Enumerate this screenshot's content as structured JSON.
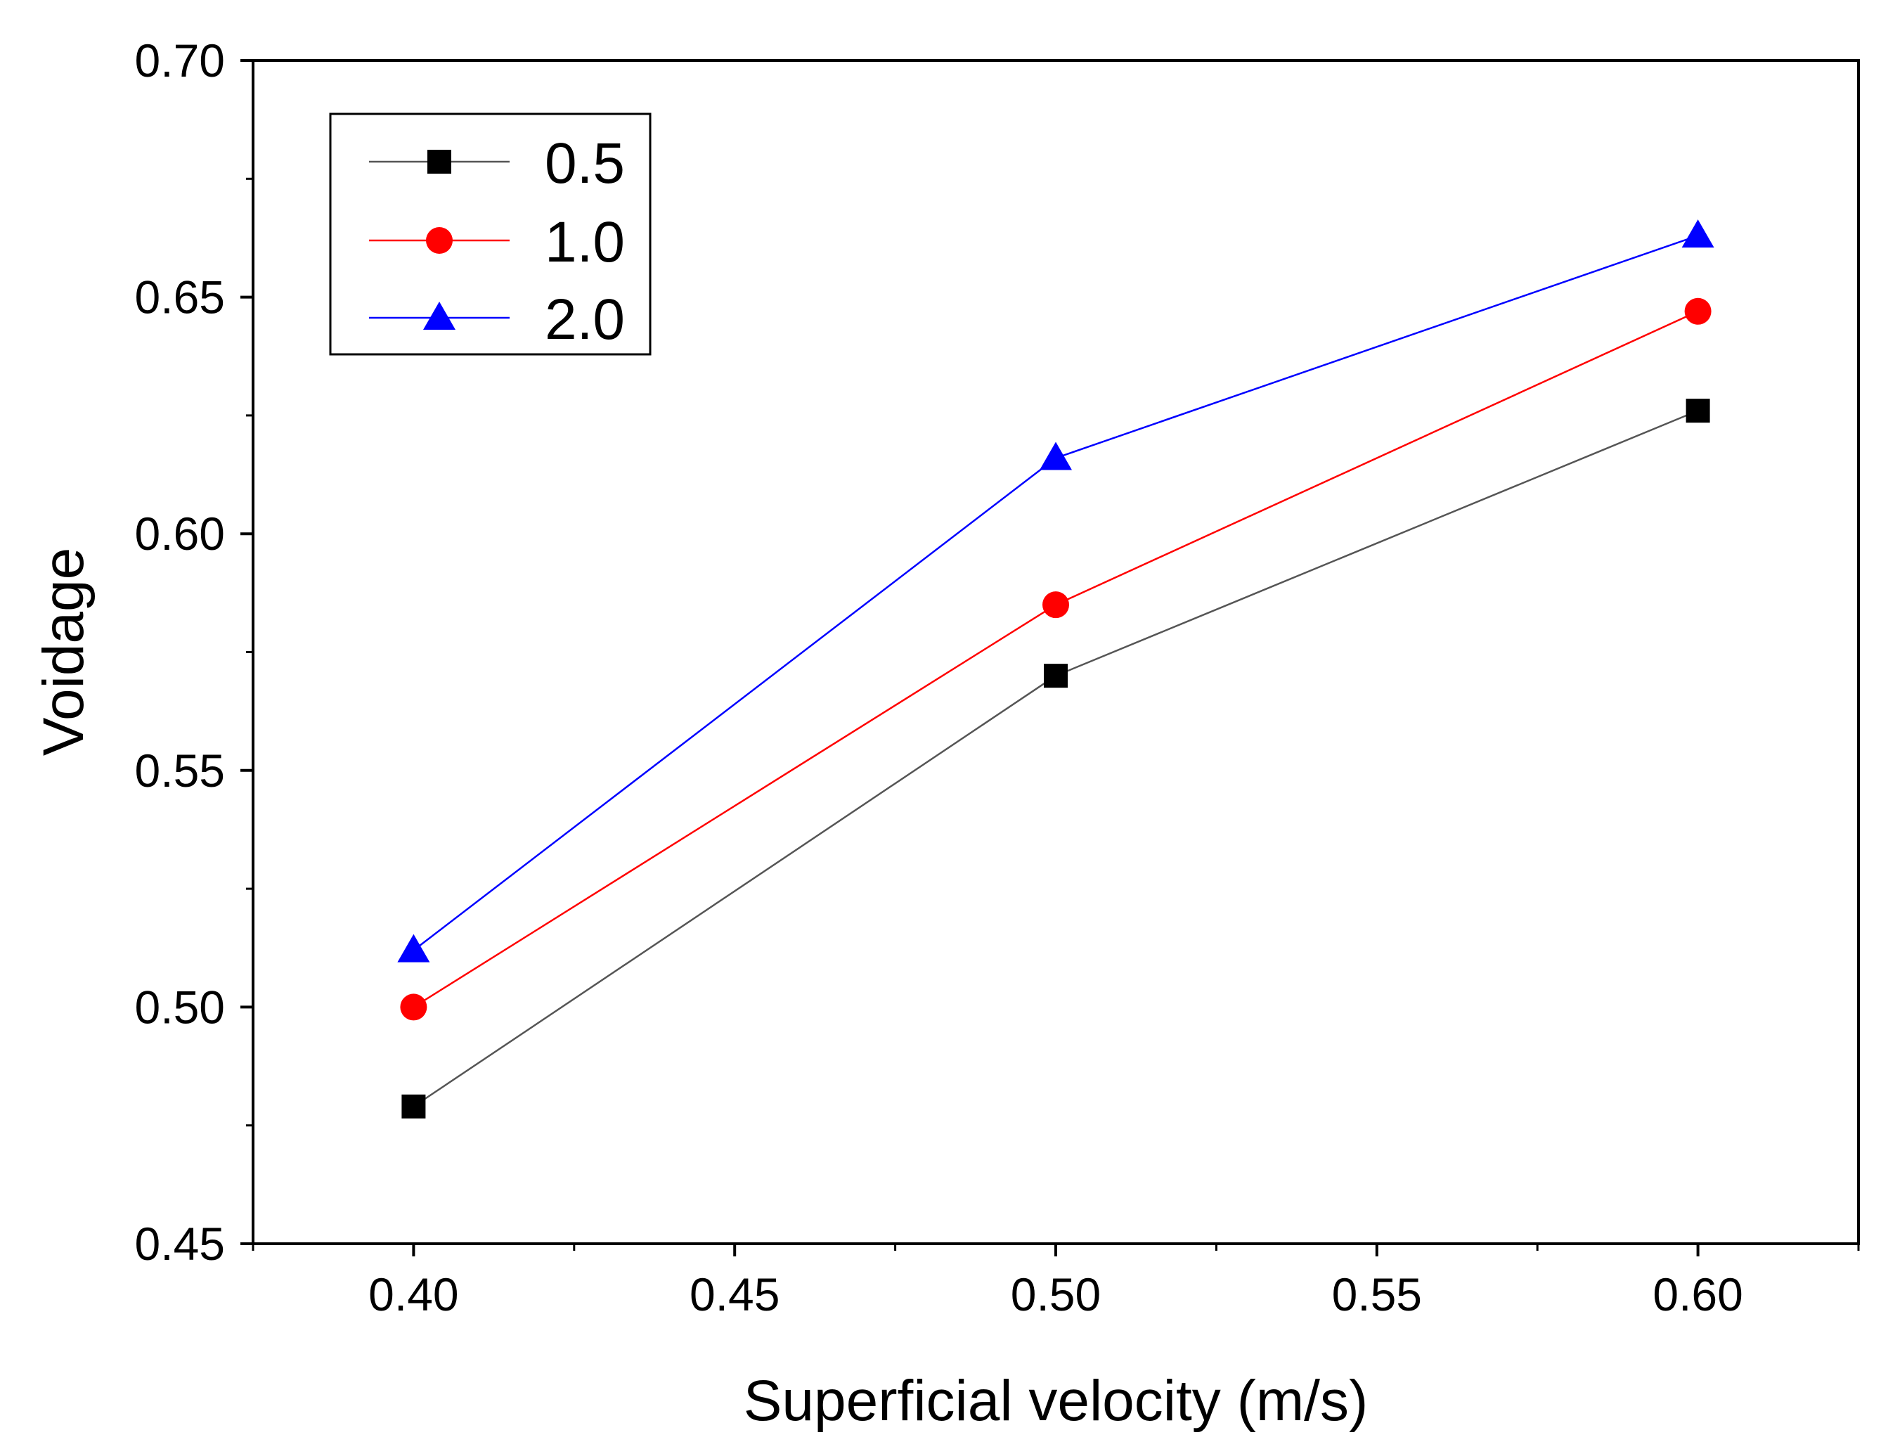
{
  "chart_data": {
    "type": "line",
    "title": "",
    "xlabel": "Superficial velocity (m/s)",
    "ylabel": "Voidage",
    "xlim": [
      0.375,
      0.625
    ],
    "ylim": [
      0.45,
      0.7
    ],
    "x_ticks": [
      0.4,
      0.45,
      0.5,
      0.55,
      0.6
    ],
    "x_tick_labels": [
      "0.40",
      "0.45",
      "0.50",
      "0.55",
      "0.60"
    ],
    "y_ticks": [
      0.45,
      0.5,
      0.55,
      0.6,
      0.65,
      0.7
    ],
    "y_tick_labels": [
      "0.45",
      "0.50",
      "0.55",
      "0.60",
      "0.65",
      "0.70"
    ],
    "grid": false,
    "legend_position": "top-left",
    "series": [
      {
        "name": "0.5",
        "marker": "square",
        "color": "#000000",
        "line_color": "#555555",
        "x": [
          0.4,
          0.5,
          0.6
        ],
        "values": [
          0.479,
          0.57,
          0.626
        ]
      },
      {
        "name": "1.0",
        "marker": "circle",
        "color": "#ff0000",
        "line_color": "#ff0000",
        "x": [
          0.4,
          0.5,
          0.6
        ],
        "values": [
          0.5,
          0.585,
          0.647
        ]
      },
      {
        "name": "2.0",
        "marker": "triangle",
        "color": "#0000ff",
        "line_color": "#0000ff",
        "x": [
          0.4,
          0.5,
          0.6
        ],
        "values": [
          0.512,
          0.616,
          0.663
        ]
      }
    ]
  }
}
